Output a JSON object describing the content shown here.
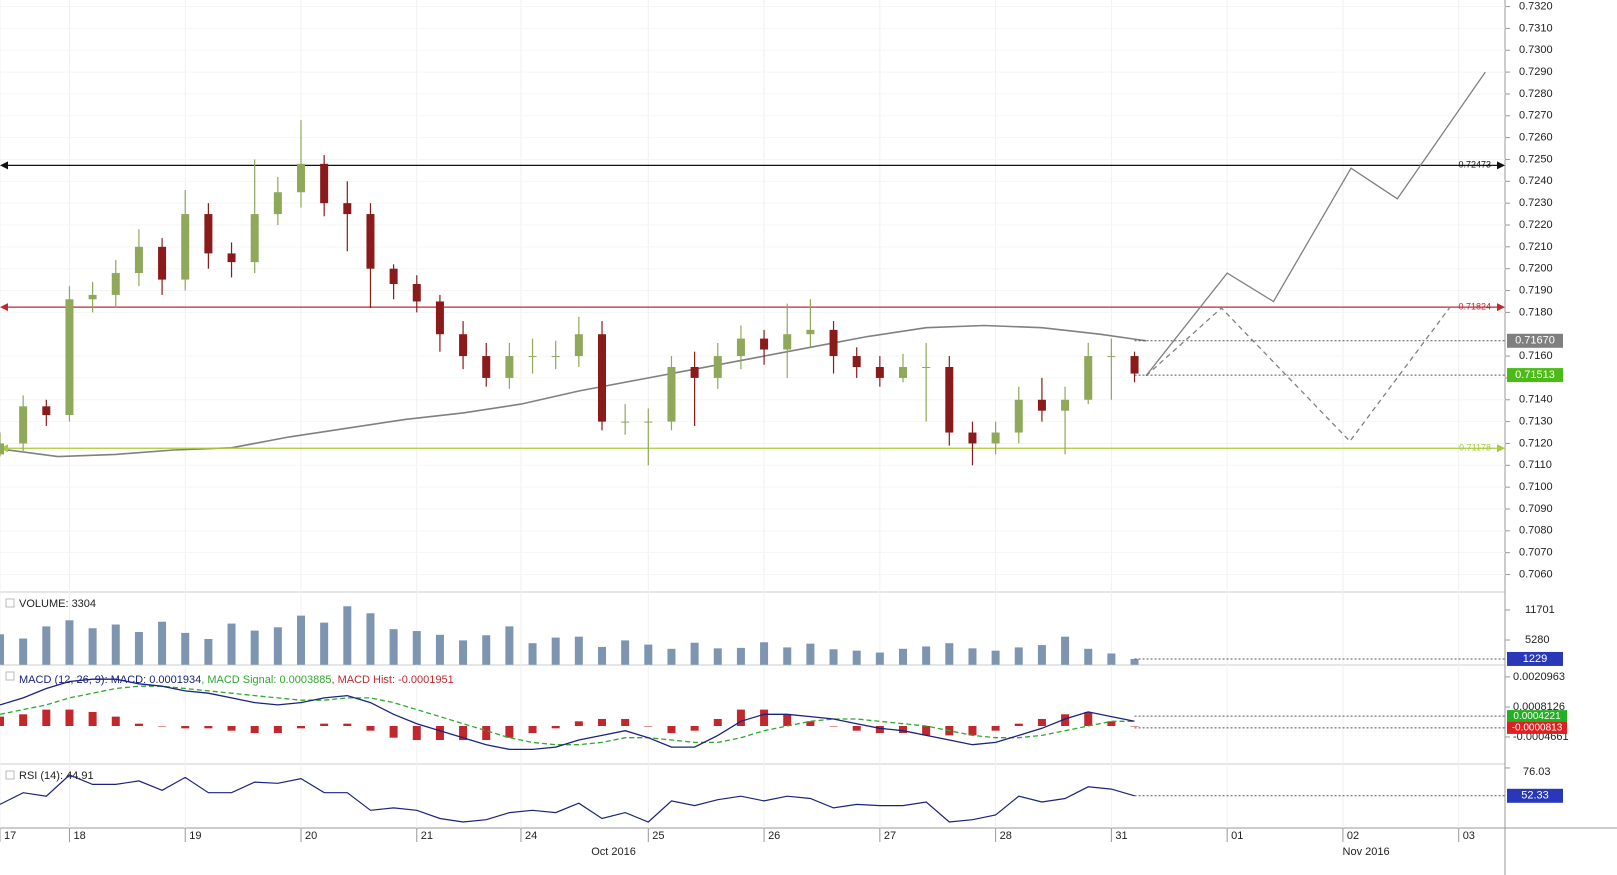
{
  "chart_data": {
    "type": "candlestick",
    "xlim": [
      0,
      130
    ],
    "xticks": [
      {
        "value": 0,
        "label": "17"
      },
      {
        "value": 6,
        "label": "18"
      },
      {
        "value": 16,
        "label": "19"
      },
      {
        "value": 26,
        "label": "20"
      },
      {
        "value": 36,
        "label": "21"
      },
      {
        "value": 45,
        "label": "24"
      },
      {
        "value": 56,
        "label": "25"
      },
      {
        "value": 66,
        "label": "26"
      },
      {
        "value": 76,
        "label": "27"
      },
      {
        "value": 86,
        "label": "28"
      },
      {
        "value": 96,
        "label": "31"
      },
      {
        "value": 106,
        "label": "01"
      },
      {
        "value": 116,
        "label": "02"
      },
      {
        "value": 126,
        "label": "03"
      }
    ],
    "month_ticks": [
      {
        "value": 53,
        "label": "Oct 2016"
      },
      {
        "value": 118,
        "label": "Nov 2016"
      }
    ],
    "ylim": [
      0.7052,
      0.7323
    ],
    "yticks": [
      {
        "value": 0.706,
        "label": "0.7060"
      },
      {
        "value": 0.707,
        "label": "0.7070"
      },
      {
        "value": 0.708,
        "label": "0.7080"
      },
      {
        "value": 0.709,
        "label": "0.7090"
      },
      {
        "value": 0.71,
        "label": "0.7100"
      },
      {
        "value": 0.711,
        "label": "0.7110"
      },
      {
        "value": 0.712,
        "label": "0.7120"
      },
      {
        "value": 0.713,
        "label": "0.7130"
      },
      {
        "value": 0.714,
        "label": "0.7140"
      },
      {
        "value": 0.715,
        "label": "0.7150"
      },
      {
        "value": 0.716,
        "label": "0.7160"
      },
      {
        "value": 0.718,
        "label": "0.7180"
      },
      {
        "value": 0.719,
        "label": "0.7190"
      },
      {
        "value": 0.72,
        "label": "0.7200"
      },
      {
        "value": 0.721,
        "label": "0.7210"
      },
      {
        "value": 0.722,
        "label": "0.7220"
      },
      {
        "value": 0.723,
        "label": "0.7230"
      },
      {
        "value": 0.724,
        "label": "0.7240"
      },
      {
        "value": 0.725,
        "label": "0.7250"
      },
      {
        "value": 0.726,
        "label": "0.7260"
      },
      {
        "value": 0.727,
        "label": "0.7270"
      },
      {
        "value": 0.728,
        "label": "0.7280"
      },
      {
        "value": 0.729,
        "label": "0.7290"
      },
      {
        "value": 0.73,
        "label": "0.7300"
      },
      {
        "value": 0.731,
        "label": "0.7310"
      },
      {
        "value": 0.732,
        "label": "0.7320"
      }
    ],
    "grid": true,
    "up_color": "#8fa85a",
    "down_color": "#8b1a1a",
    "x": [
      0,
      2,
      4,
      6,
      8,
      10,
      12,
      14,
      16,
      18,
      20,
      22,
      24,
      26,
      28,
      30,
      32,
      34,
      36,
      38,
      40,
      42,
      44,
      46,
      48,
      50,
      52,
      54,
      56,
      58,
      60,
      62,
      64,
      66,
      68,
      70,
      72,
      74,
      76,
      78,
      80,
      82,
      84,
      86,
      88,
      90,
      92,
      94,
      96,
      98
    ],
    "open": [
      0.7115,
      0.712,
      0.7137,
      0.7133,
      0.7186,
      0.7188,
      0.7198,
      0.721,
      0.7195,
      0.7225,
      0.7207,
      0.7203,
      0.7225,
      0.7235,
      0.7248,
      0.723,
      0.7225,
      0.72,
      0.7193,
      0.7185,
      0.717,
      0.716,
      0.715,
      0.716,
      0.716,
      0.716,
      0.717,
      0.713,
      0.713,
      0.713,
      0.7155,
      0.715,
      0.716,
      0.7168,
      0.7163,
      0.717,
      0.7172,
      0.716,
      0.7155,
      0.715,
      0.7155,
      0.7155,
      0.7125,
      0.712,
      0.7125,
      0.714,
      0.7135,
      0.714,
      0.716,
      0.716
    ],
    "high": [
      0.7125,
      0.7142,
      0.714,
      0.7192,
      0.7194,
      0.7204,
      0.7218,
      0.7214,
      0.7236,
      0.723,
      0.7212,
      0.725,
      0.7242,
      0.7268,
      0.7252,
      0.724,
      0.723,
      0.7202,
      0.7197,
      0.7188,
      0.7176,
      0.7166,
      0.7166,
      0.7168,
      0.7167,
      0.7178,
      0.7176,
      0.7138,
      0.7136,
      0.716,
      0.7162,
      0.7166,
      0.7174,
      0.7172,
      0.7184,
      0.7186,
      0.7176,
      0.7164,
      0.716,
      0.7161,
      0.7166,
      0.716,
      0.713,
      0.713,
      0.7146,
      0.715,
      0.7146,
      0.7166,
      0.7168,
      0.7162
    ],
    "low": [
      0.7114,
      0.7116,
      0.7128,
      0.713,
      0.718,
      0.7182,
      0.7192,
      0.7188,
      0.719,
      0.72,
      0.7196,
      0.7198,
      0.722,
      0.7228,
      0.7224,
      0.7208,
      0.7182,
      0.7186,
      0.718,
      0.7162,
      0.7154,
      0.7146,
      0.7145,
      0.7152,
      0.7154,
      0.7155,
      0.7126,
      0.7124,
      0.711,
      0.7126,
      0.7128,
      0.7145,
      0.7154,
      0.7156,
      0.715,
      0.7164,
      0.7152,
      0.715,
      0.7146,
      0.7148,
      0.713,
      0.7119,
      0.711,
      0.7115,
      0.712,
      0.713,
      0.7115,
      0.7138,
      0.714,
      0.7148
    ],
    "close": [
      0.712,
      0.7137,
      0.7133,
      0.7186,
      0.7188,
      0.7198,
      0.721,
      0.7195,
      0.7225,
      0.7207,
      0.7203,
      0.7225,
      0.7235,
      0.7248,
      0.723,
      0.7225,
      0.72,
      0.7193,
      0.7185,
      0.717,
      0.716,
      0.715,
      0.716,
      0.716,
      0.716,
      0.717,
      0.713,
      0.713,
      0.713,
      0.7155,
      0.715,
      0.716,
      0.7168,
      0.7163,
      0.717,
      0.7172,
      0.716,
      0.7155,
      0.715,
      0.7155,
      0.7155,
      0.7125,
      0.712,
      0.7125,
      0.714,
      0.7135,
      0.714,
      0.716,
      0.716,
      0.7152
    ],
    "levels": [
      {
        "value": 0.72473,
        "label": "0.72473",
        "color": "#111111"
      },
      {
        "value": 0.71824,
        "label": "0.71824",
        "color": "#c0282d"
      },
      {
        "value": 0.71178,
        "label": "0.71178",
        "color": "#a6cc3a"
      }
    ],
    "sma": {
      "color": "#808080",
      "x": [
        0,
        5,
        10,
        15,
        20,
        25,
        30,
        35,
        40,
        45,
        50,
        55,
        60,
        65,
        70,
        75,
        80,
        85,
        90,
        95,
        99
      ],
      "values": [
        0.71175,
        0.7114,
        0.7115,
        0.7117,
        0.7118,
        0.7123,
        0.7127,
        0.7131,
        0.7134,
        0.7138,
        0.7144,
        0.7149,
        0.7154,
        0.7159,
        0.7164,
        0.7169,
        0.7173,
        0.7174,
        0.7173,
        0.717,
        0.7167
      ]
    },
    "markers": [
      {
        "value": 0.7167,
        "label": "0.71670",
        "color": "#7f7f7f"
      },
      {
        "value": 0.71513,
        "label": "0.71513",
        "color": "#4cbb17"
      }
    ],
    "projections": [
      {
        "style": "solid",
        "color": "#808080",
        "x": [
          99,
          106,
          110,
          116.7,
          120.7,
          128.3
        ],
        "values": [
          0.7151,
          0.7198,
          0.7185,
          0.7246,
          0.7232,
          0.729
        ]
      },
      {
        "style": "dashed",
        "color": "#808080",
        "x": [
          99,
          105.5,
          116.6,
          125.2
        ],
        "values": [
          0.7151,
          0.7182,
          0.7121,
          0.7182
        ]
      }
    ],
    "volume": {
      "title": "VOLUME: 3304",
      "color": "#7d95b0",
      "ylim": [
        0,
        14270
      ],
      "yticks": [
        5280,
        11701
      ],
      "values": [
        6500,
        5600,
        8200,
        9500,
        7800,
        8600,
        7000,
        9200,
        6800,
        5500,
        8800,
        7300,
        8000,
        10500,
        9000,
        12500,
        11000,
        7600,
        7200,
        6400,
        5200,
        6300,
        8200,
        4600,
        5800,
        6000,
        3800,
        5200,
        4300,
        3400,
        4700,
        3500,
        3600,
        4800,
        3700,
        4500,
        3300,
        3000,
        2600,
        3400,
        3900,
        4600,
        3500,
        3000,
        3700,
        4200,
        6000,
        3400,
        2400,
        1229
      ]
    },
    "macd": {
      "legend": [
        {
          "text": "MACD (12, 26, 9): MACD: 0.0001934",
          "color": "#1a237e"
        },
        {
          "text": ", MACD Signal: 0.0003885",
          "color": "#2eaa2e"
        },
        {
          "text": ", MACD Hist: -0.0001951",
          "color": "#c0282d"
        }
      ],
      "ylim": [
        -0.00158,
        0.002562
      ],
      "yticks": [
        {
          "value": 0.0020963,
          "label": "0.0020963"
        },
        {
          "value": 0.0008126,
          "label": "0.0008126"
        },
        {
          "value": -0.0004661,
          "label": "-0.0004661"
        }
      ],
      "markers": [
        {
          "value": 0.0004221,
          "label": "0.0004221",
          "color": "#22b022"
        },
        {
          "value": -8.13e-05,
          "label": "-0.0000813",
          "color": "#e02020"
        }
      ],
      "line": {
        "color": "#1a237e",
        "values": [
          0.0009,
          0.0012,
          0.0016,
          0.0019,
          0.002,
          0.002,
          0.0018,
          0.0017,
          0.0015,
          0.0014,
          0.0012,
          0.001,
          0.0009,
          0.001,
          0.0012,
          0.0013,
          0.001,
          0.0005,
          0.0001,
          -0.0002,
          -0.0005,
          -0.0008,
          -0.001,
          -0.001,
          -0.0009,
          -0.0006,
          -0.0004,
          -0.0002,
          -0.0005,
          -0.0009,
          -0.0009,
          -0.0004,
          0.0002,
          0.0005,
          0.0005,
          0.0004,
          0.0003,
          0.0001,
          -0.0001,
          -0.0002,
          -0.0004,
          -0.0006,
          -0.0008,
          -0.0007,
          -0.0004,
          -0.0001,
          0.0003,
          0.0006,
          0.0004,
          0.0002
        ]
      },
      "signal": {
        "color": "#2eaa2e",
        "values": [
          0.0005,
          0.0007,
          0.0009,
          0.0012,
          0.0014,
          0.0016,
          0.0017,
          0.0017,
          0.0016,
          0.0015,
          0.0014,
          0.0013,
          0.0012,
          0.0011,
          0.0011,
          0.0012,
          0.0012,
          0.001,
          0.0007,
          0.0004,
          0.0001,
          -0.0002,
          -0.0005,
          -0.0007,
          -0.0008,
          -0.0008,
          -0.0007,
          -0.0005,
          -0.0005,
          -0.0006,
          -0.0007,
          -0.0007,
          -0.0005,
          -0.0002,
          0,
          0.0002,
          0.0003,
          0.0003,
          0.0002,
          0.0001,
          0,
          -0.0002,
          -0.0004,
          -0.0005,
          -0.0005,
          -0.0004,
          -0.0002,
          0,
          0.0002,
          0.0002
        ]
      },
      "hist": {
        "color": "#c0282d",
        "values": [
          0.0004,
          0.0005,
          0.0007,
          0.0007,
          0.0006,
          0.0004,
          0.0001,
          0,
          -0.0001,
          -0.0001,
          -0.0002,
          -0.0003,
          -0.0003,
          -0.0001,
          0.0001,
          0.0001,
          -0.0002,
          -0.0005,
          -0.0006,
          -0.0006,
          -0.0006,
          -0.0006,
          -0.0005,
          -0.0003,
          -0.0001,
          0.0002,
          0.0003,
          0.0003,
          0,
          -0.0003,
          -0.0002,
          0.0003,
          0.0007,
          0.0007,
          0.0005,
          0.0002,
          0,
          -0.0002,
          -0.0003,
          -0.0003,
          -0.0004,
          -0.0004,
          -0.0004,
          -0.0002,
          0.0001,
          0.0003,
          0.0005,
          0.0006,
          0.0002,
          0
        ]
      }
    },
    "rsi": {
      "title": "RSI (14): 44.91",
      "color": "#1a237e",
      "ylim": [
        24.9,
        77.7
      ],
      "yticks": [
        76.03
      ],
      "values": [
        45,
        55,
        52,
        70,
        62,
        62,
        65,
        57,
        68,
        55,
        55,
        64,
        63,
        67,
        55,
        55,
        40,
        42,
        40,
        33,
        30,
        32,
        38,
        40,
        38,
        46,
        33,
        38,
        30,
        48,
        44,
        49,
        52,
        48,
        52,
        50,
        42,
        45,
        44,
        44,
        47,
        30,
        32,
        36,
        52,
        47,
        50,
        60,
        58,
        52.33
      ]
    }
  }
}
